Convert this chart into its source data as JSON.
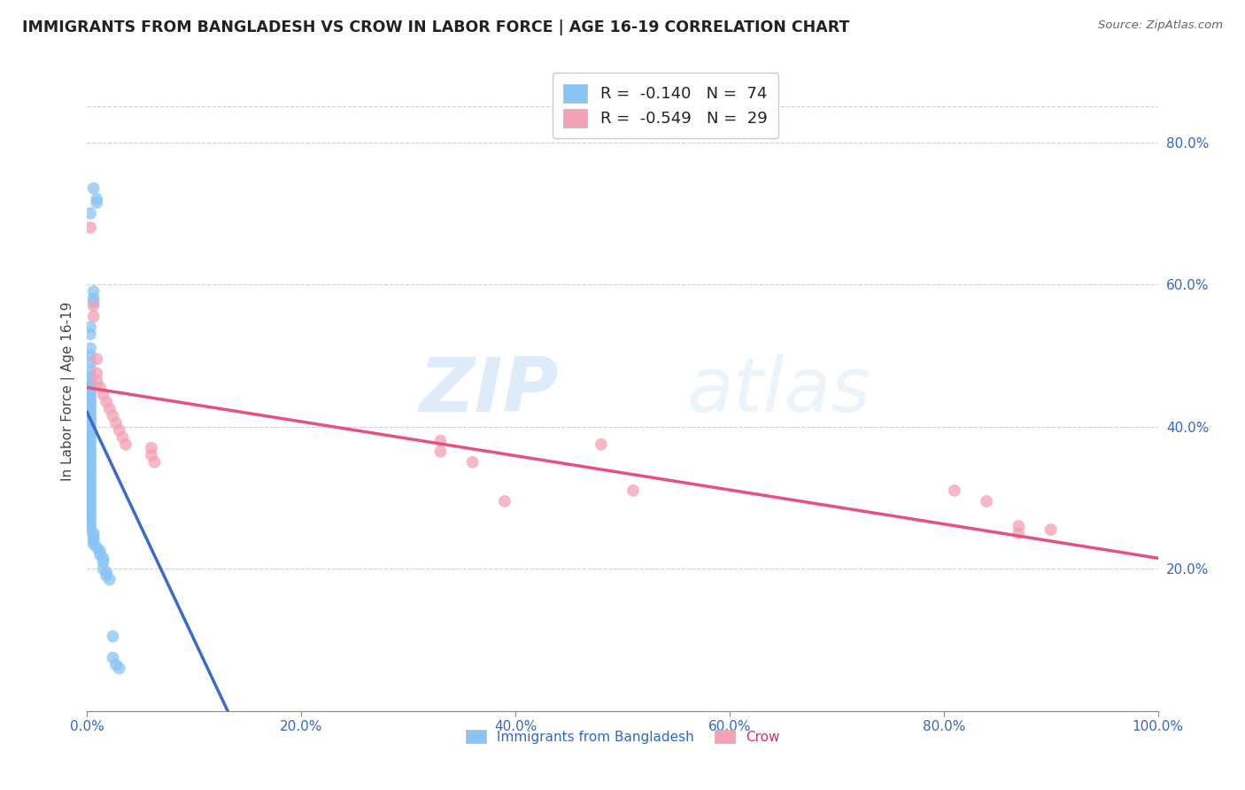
{
  "title": "IMMIGRANTS FROM BANGLADESH VS CROW IN LABOR FORCE | AGE 16-19 CORRELATION CHART",
  "source": "Source: ZipAtlas.com",
  "ylabel": "In Labor Force | Age 16-19",
  "ytick_labels": [
    "20.0%",
    "40.0%",
    "60.0%",
    "80.0%"
  ],
  "ytick_values": [
    0.2,
    0.4,
    0.6,
    0.8
  ],
  "xlim": [
    0.0,
    1.0
  ],
  "ylim": [
    0.0,
    0.9
  ],
  "watermark_zip": "ZIP",
  "watermark_atlas": "atlas",
  "legend_R1": "-0.140",
  "legend_N1": "74",
  "legend_R2": "-0.549",
  "legend_N2": "29",
  "label1": "Immigrants from Bangladesh",
  "label2": "Crow",
  "color1": "#89C4F4",
  "color2": "#F4A0B5",
  "trendline1_color": "#3B6BC8",
  "trendline2_color": "#E85080",
  "trendline_ext_color": "#99BBDD",
  "bg_color": "#FFFFFF",
  "grid_color": "#CCCCDD",
  "bangladesh_x": [
    0.006,
    0.009,
    0.009,
    0.003,
    0.006,
    0.006,
    0.006,
    0.003,
    0.003,
    0.003,
    0.003,
    0.003,
    0.003,
    0.003,
    0.003,
    0.003,
    0.003,
    0.003,
    0.003,
    0.003,
    0.003,
    0.003,
    0.003,
    0.003,
    0.003,
    0.003,
    0.003,
    0.003,
    0.003,
    0.003,
    0.003,
    0.003,
    0.003,
    0.003,
    0.003,
    0.003,
    0.003,
    0.003,
    0.003,
    0.003,
    0.003,
    0.003,
    0.003,
    0.003,
    0.003,
    0.003,
    0.003,
    0.003,
    0.003,
    0.003,
    0.003,
    0.003,
    0.003,
    0.003,
    0.003,
    0.003,
    0.003,
    0.006,
    0.006,
    0.006,
    0.006,
    0.009,
    0.012,
    0.012,
    0.015,
    0.015,
    0.015,
    0.018,
    0.018,
    0.021,
    0.024,
    0.024,
    0.027,
    0.03
  ],
  "bangladesh_y": [
    0.735,
    0.72,
    0.715,
    0.7,
    0.59,
    0.58,
    0.575,
    0.54,
    0.53,
    0.51,
    0.5,
    0.49,
    0.48,
    0.47,
    0.465,
    0.46,
    0.455,
    0.45,
    0.445,
    0.44,
    0.435,
    0.43,
    0.425,
    0.42,
    0.415,
    0.41,
    0.405,
    0.4,
    0.395,
    0.39,
    0.385,
    0.38,
    0.375,
    0.37,
    0.365,
    0.36,
    0.355,
    0.35,
    0.345,
    0.34,
    0.335,
    0.33,
    0.325,
    0.32,
    0.315,
    0.31,
    0.305,
    0.3,
    0.295,
    0.29,
    0.285,
    0.28,
    0.275,
    0.27,
    0.265,
    0.26,
    0.255,
    0.25,
    0.245,
    0.24,
    0.235,
    0.23,
    0.225,
    0.22,
    0.215,
    0.21,
    0.2,
    0.195,
    0.19,
    0.185,
    0.105,
    0.075,
    0.065,
    0.06
  ],
  "crow_x": [
    0.003,
    0.006,
    0.006,
    0.009,
    0.009,
    0.009,
    0.012,
    0.015,
    0.018,
    0.021,
    0.024,
    0.027,
    0.03,
    0.033,
    0.036,
    0.06,
    0.06,
    0.063,
    0.33,
    0.33,
    0.36,
    0.39,
    0.48,
    0.51,
    0.81,
    0.84,
    0.87,
    0.87,
    0.9
  ],
  "crow_y": [
    0.68,
    0.57,
    0.555,
    0.495,
    0.475,
    0.465,
    0.455,
    0.445,
    0.435,
    0.425,
    0.415,
    0.405,
    0.395,
    0.385,
    0.375,
    0.37,
    0.36,
    0.35,
    0.38,
    0.365,
    0.35,
    0.295,
    0.375,
    0.31,
    0.31,
    0.295,
    0.26,
    0.25,
    0.255
  ],
  "trendline1_x_solid_end": 0.32,
  "trendline1_intercept": 0.42,
  "trendline1_slope": -3.2,
  "trendline2_intercept": 0.455,
  "trendline2_slope": -0.24
}
